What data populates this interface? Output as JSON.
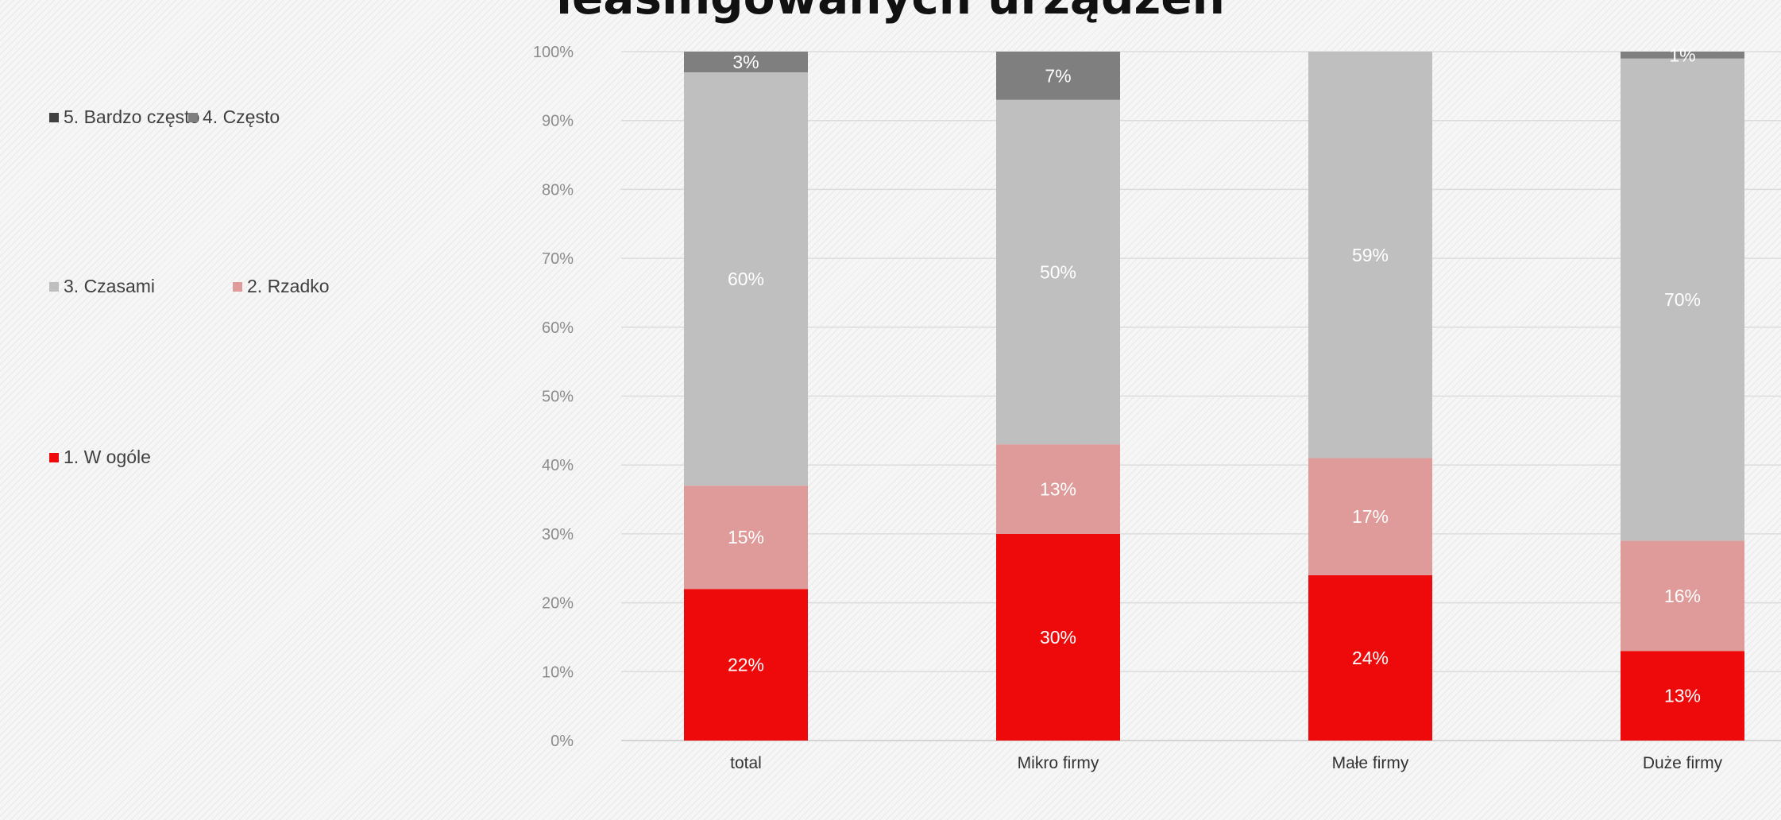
{
  "chart_data": {
    "type": "bar",
    "stacked": true,
    "title": "leasingowanych urządzeń",
    "xlabel": "",
    "ylabel": "",
    "ylim": [
      0,
      100
    ],
    "y_ticks": [
      "0%",
      "10%",
      "20%",
      "30%",
      "40%",
      "50%",
      "60%",
      "70%",
      "80%",
      "90%",
      "100%"
    ],
    "grid": true,
    "legend_position": "left",
    "categories": [
      "total",
      "Mikro firmy",
      "Małe firmy",
      "Duże firmy"
    ],
    "series": [
      {
        "name": "1. W ogóle",
        "color": "#ee0a0a",
        "label_color": "#ffffff",
        "values": [
          22,
          30,
          24,
          13
        ],
        "labels": [
          "22%",
          "30%",
          "24%",
          "13%"
        ]
      },
      {
        "name": "2. Rzadko",
        "color": "#df9a9a",
        "label_color": "#ffffff",
        "values": [
          15,
          13,
          17,
          16
        ],
        "labels": [
          "15%",
          "13%",
          "17%",
          "16%"
        ]
      },
      {
        "name": "3. Czasami",
        "color": "#bfbfbf",
        "label_color": "#ffffff",
        "values": [
          60,
          50,
          59,
          70
        ],
        "labels": [
          "60%",
          "50%",
          "59%",
          "70%"
        ]
      },
      {
        "name": "4. Często",
        "color": "#7f7f7f",
        "label_color": "#ffffff",
        "values": [
          3,
          7,
          0,
          1
        ],
        "labels": [
          "3%",
          "7%",
          "",
          "1%"
        ]
      },
      {
        "name": "5. Bardzo często",
        "color": "#404040",
        "label_color": "#ffffff",
        "values": [
          0,
          0,
          0,
          0
        ],
        "labels": [
          "",
          "",
          "",
          ""
        ]
      }
    ]
  }
}
